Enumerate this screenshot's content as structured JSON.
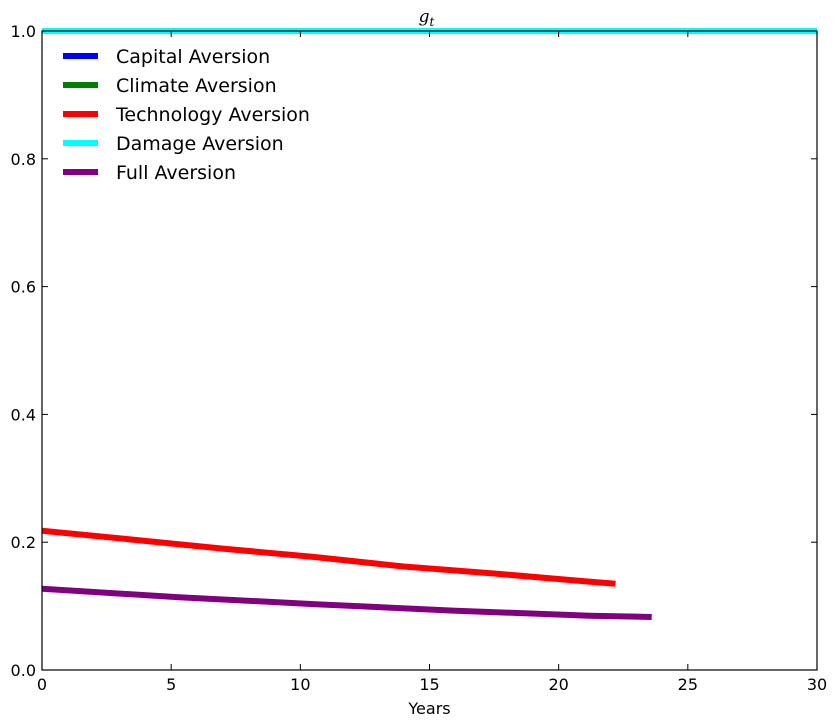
{
  "chart_data": {
    "type": "line",
    "title": "g_t",
    "title_display": "g",
    "title_subscript": "t",
    "xlabel": "Years",
    "ylabel": "",
    "xlim": [
      0,
      30
    ],
    "ylim": [
      0.0,
      1.0
    ],
    "xticks": [
      0,
      5,
      10,
      15,
      20,
      25,
      30
    ],
    "xtick_labels": [
      "0",
      "5",
      "10",
      "15",
      "20",
      "25",
      "30"
    ],
    "yticks": [
      0.0,
      0.2,
      0.4,
      0.6,
      0.8,
      1.0
    ],
    "ytick_labels": [
      "0.0",
      "0.2",
      "0.4",
      "0.6",
      "0.8",
      "1.0"
    ],
    "grid": false,
    "legend_position": "top-left",
    "series": [
      {
        "name": "Capital Aversion",
        "color": "#0000ff",
        "x": [
          0,
          30
        ],
        "y": [
          1.0,
          1.0
        ]
      },
      {
        "name": "Climate Aversion",
        "color": "#008000",
        "x": [
          0,
          30
        ],
        "y": [
          1.0,
          1.0
        ]
      },
      {
        "name": "Technology Aversion",
        "color": "#ff0000",
        "x": [
          0,
          3.5,
          7,
          10.5,
          14,
          17.5,
          21,
          22.2
        ],
        "y": [
          0.218,
          0.204,
          0.19,
          0.177,
          0.162,
          0.151,
          0.139,
          0.135
        ]
      },
      {
        "name": "Damage Aversion",
        "color": "#00ffff",
        "x": [
          0,
          30
        ],
        "y": [
          1.0,
          1.0
        ]
      },
      {
        "name": "Full Aversion",
        "color": "#800080",
        "x": [
          0,
          5.3,
          10.6,
          15.9,
          21.2,
          23.6
        ],
        "y": [
          0.127,
          0.114,
          0.103,
          0.093,
          0.085,
          0.083
        ]
      }
    ]
  }
}
